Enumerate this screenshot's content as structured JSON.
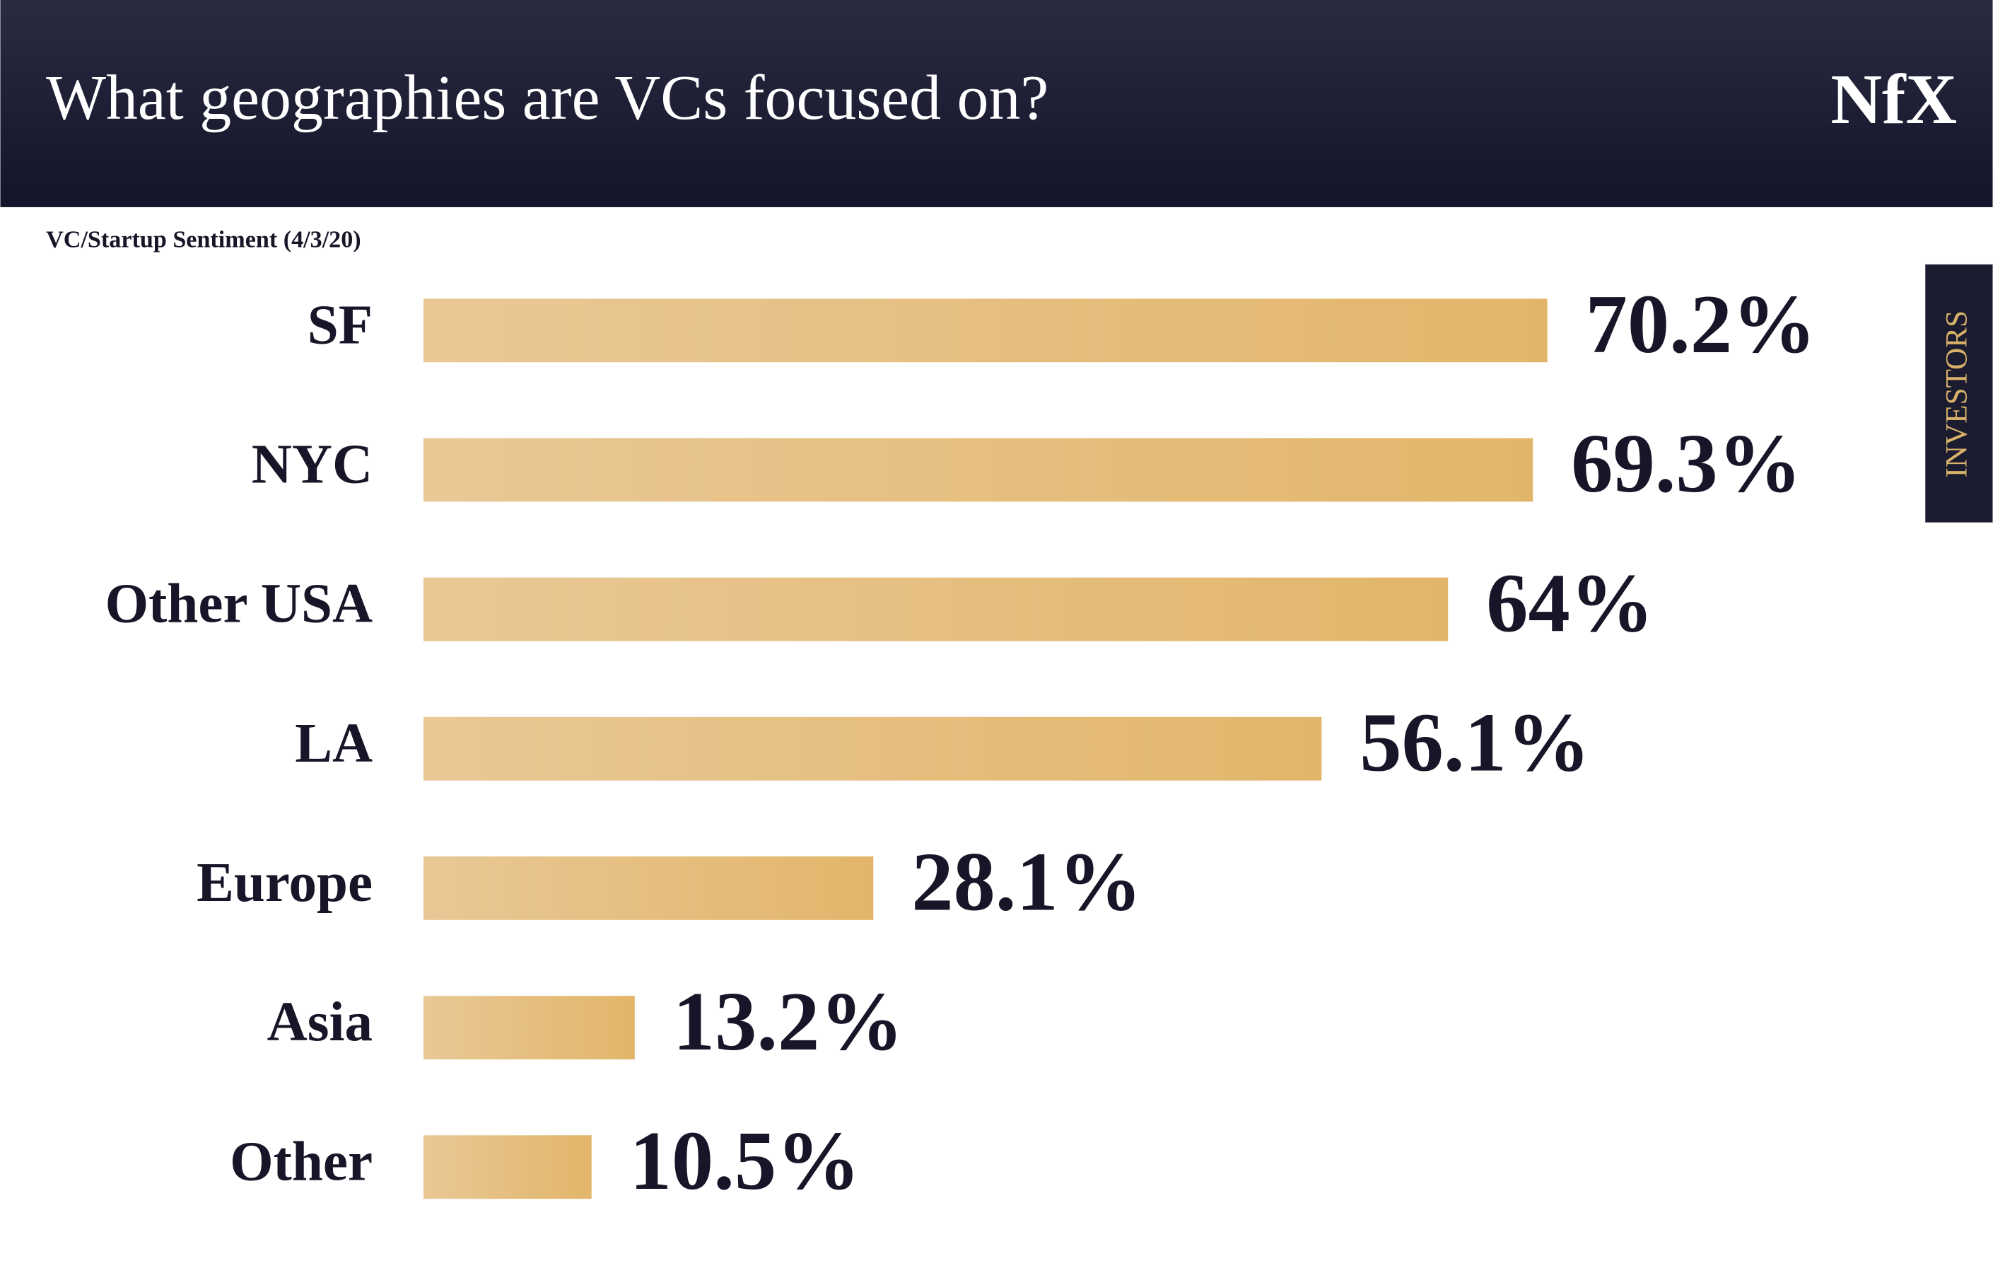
{
  "chart_data": {
    "type": "hbar",
    "title": "What geographies are VCs focused on?",
    "subtitle": "VC/Startup Sentiment (4/3/20)",
    "categories": [
      "SF",
      "NYC",
      "Other USA",
      "LA",
      "Europe",
      "Asia",
      "Other"
    ],
    "values": [
      70.2,
      69.3,
      64,
      56.1,
      28.1,
      13.2,
      10.5
    ],
    "value_labels": [
      "70.2%",
      "69.3%",
      "64%",
      "56.1%",
      "28.1%",
      "13.2%",
      "10.5%"
    ],
    "color": "#e2b66a"
  },
  "logo": "NfX",
  "side_tab": "INVESTORS"
}
